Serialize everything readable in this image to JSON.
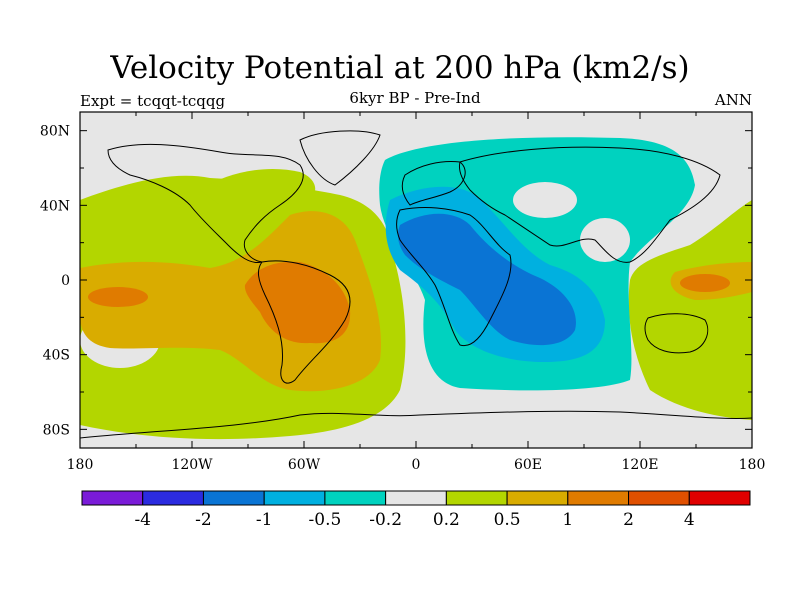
{
  "title": "Velocity Potential at 200 hPa (km2/s)",
  "left_label": "Expt = tcqqt-tcqqg",
  "center_label": "6kyr BP - Pre-Ind",
  "right_label": "ANN",
  "map": {
    "projection": "cylindrical-equidistant",
    "lon_range": [
      -180,
      180
    ],
    "lat_range": [
      -90,
      90
    ],
    "lat_ticks": [
      {
        "value": 80,
        "label": "80N"
      },
      {
        "value": 40,
        "label": "40N"
      },
      {
        "value": 0,
        "label": "0"
      },
      {
        "value": -40,
        "label": "40S"
      },
      {
        "value": -80,
        "label": "80S"
      }
    ],
    "lon_ticks": [
      {
        "value": -180,
        "label": "180"
      },
      {
        "value": -120,
        "label": "120W"
      },
      {
        "value": -60,
        "label": "60W"
      },
      {
        "value": 0,
        "label": "0"
      },
      {
        "value": 60,
        "label": "60E"
      },
      {
        "value": 120,
        "label": "120E"
      },
      {
        "value": 180,
        "label": "180"
      }
    ]
  },
  "colorbar": {
    "colors": [
      "#7a1bd8",
      "#2b2be0",
      "#0a74d4",
      "#00b0e0",
      "#00d2bf",
      "#e6e6e6",
      "#b3d600",
      "#d9ac00",
      "#e07b00",
      "#e05000",
      "#e00000"
    ],
    "labels": [
      "-4",
      "-2",
      "-1",
      "-0.5",
      "-0.2",
      "0.2",
      "0.5",
      "1",
      "2",
      "4"
    ]
  }
}
